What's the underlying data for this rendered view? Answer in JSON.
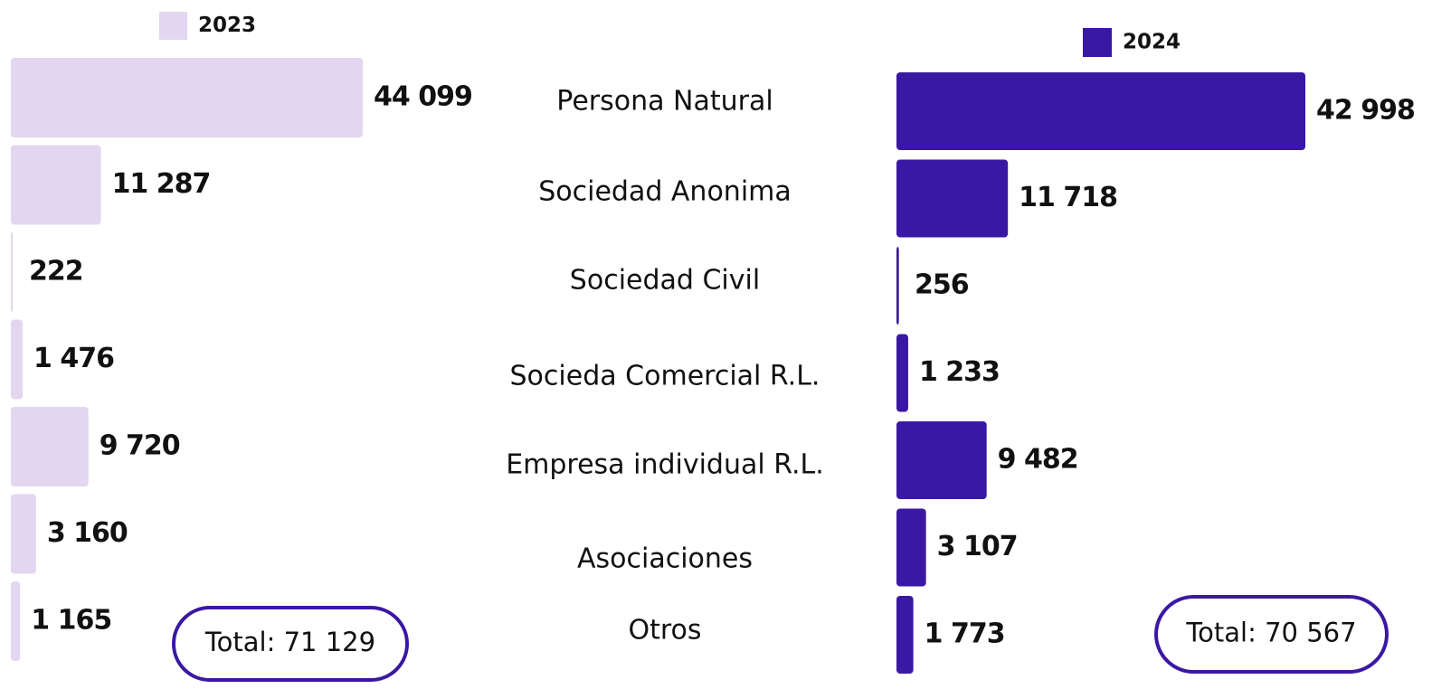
{
  "chart_data": {
    "type": "bar",
    "orientation": "horizontal",
    "categories": [
      "Persona Natural",
      "Sociedad Anonima",
      "Sociedad Civil",
      "Socieda Comercial R.L.",
      "Empresa individual R.L.",
      "Asociaciones",
      "Otros"
    ],
    "series": [
      {
        "name": "2023",
        "color": "#e2d6f0",
        "values": [
          44099,
          11287,
          222,
          1476,
          9720,
          3160,
          1165
        ],
        "value_labels": [
          "44 099",
          "11 287",
          "222",
          "1 476",
          "9 720",
          "3 160",
          "1 165"
        ]
      },
      {
        "name": "2024",
        "color": "#3b18a3",
        "values": [
          42998,
          11718,
          256,
          1233,
          9482,
          3107,
          1773
        ],
        "value_labels": [
          "42 998",
          "11 718",
          "256",
          "1 233",
          "9 482",
          "3 107",
          "1 773"
        ]
      }
    ],
    "annotations": [
      "Total: 71 129",
      "Total: 70 567"
    ]
  }
}
